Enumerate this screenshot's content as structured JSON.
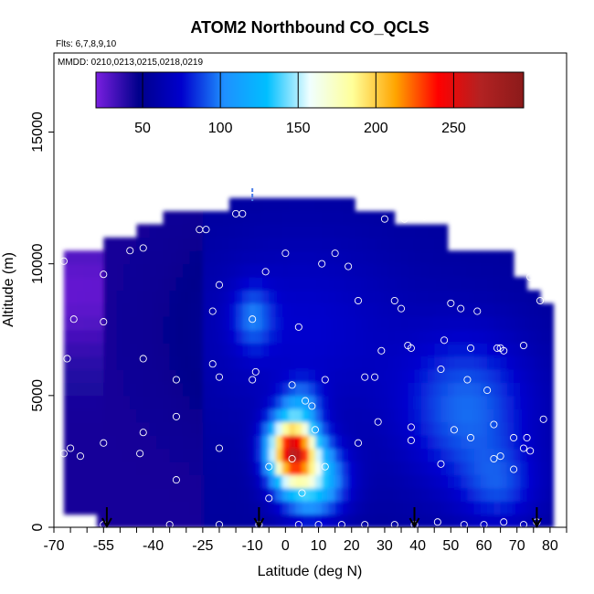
{
  "chart_data": {
    "type": "heatmap",
    "title": "ATOM2 Northbound CO_QCLS",
    "flights_note": "Flts: 6,7,8,9,10",
    "dates_note": "MMDD: 0210,0213,0215,0218,0219",
    "xlabel": "Latitude (deg N)",
    "ylabel": "Altitude (m)",
    "xlim": [
      -70,
      85
    ],
    "ylim": [
      0,
      18000
    ],
    "x_ticks": [
      -70,
      -55,
      -40,
      -25,
      -10,
      0,
      10,
      20,
      30,
      40,
      50,
      60,
      70,
      80
    ],
    "y_ticks": [
      0,
      5000,
      10000,
      15000
    ],
    "colorbar": {
      "range": [
        20,
        295
      ],
      "ticks": [
        50,
        100,
        150,
        200,
        250
      ],
      "colors": [
        "#7a1fe0",
        "#00008b",
        "#0000cd",
        "#1e90ff",
        "#00bfff",
        "#f0ffff",
        "#ffff99",
        "#ffa500",
        "#ff0000",
        "#b22222",
        "#8b1a1a"
      ],
      "placement": "top-inside"
    },
    "flight_markers_lat": [
      -54,
      -8,
      39,
      76
    ],
    "top_marker_lat": -10,
    "sample_points": [
      {
        "lat": -67,
        "alt": 10100
      },
      {
        "lat": -64,
        "alt": 7900
      },
      {
        "lat": -66,
        "alt": 6400
      },
      {
        "lat": -67,
        "alt": 2800
      },
      {
        "lat": -65,
        "alt": 3000
      },
      {
        "lat": -62,
        "alt": 2700
      },
      {
        "lat": -55,
        "alt": 9600
      },
      {
        "lat": -55,
        "alt": 7800
      },
      {
        "lat": -55,
        "alt": 3200
      },
      {
        "lat": -47,
        "alt": 10500
      },
      {
        "lat": -43,
        "alt": 10600
      },
      {
        "lat": -43,
        "alt": 6400
      },
      {
        "lat": -43,
        "alt": 3600
      },
      {
        "lat": -44,
        "alt": 2800
      },
      {
        "lat": -33,
        "alt": 5600
      },
      {
        "lat": -33,
        "alt": 4200
      },
      {
        "lat": -33,
        "alt": 1800
      },
      {
        "lat": -26,
        "alt": 11300
      },
      {
        "lat": -24,
        "alt": 11300
      },
      {
        "lat": -22,
        "alt": 6200
      },
      {
        "lat": -22,
        "alt": 8200
      },
      {
        "lat": -20,
        "alt": 9200
      },
      {
        "lat": -20,
        "alt": 3000
      },
      {
        "lat": -20,
        "alt": 5700
      },
      {
        "lat": -15,
        "alt": 11900
      },
      {
        "lat": -13,
        "alt": 11900
      },
      {
        "lat": -10,
        "alt": 5600
      },
      {
        "lat": -10,
        "alt": 7900
      },
      {
        "lat": -9,
        "alt": 5900
      },
      {
        "lat": -6,
        "alt": 9700
      },
      {
        "lat": 0,
        "alt": 10400
      },
      {
        "lat": 4,
        "alt": 7600
      },
      {
        "lat": 2,
        "alt": 5400
      },
      {
        "lat": 6,
        "alt": 4800
      },
      {
        "lat": 8,
        "alt": 4600
      },
      {
        "lat": 9,
        "alt": 3700
      },
      {
        "lat": 12,
        "alt": 5600
      },
      {
        "lat": 11,
        "alt": 10000
      },
      {
        "lat": 15,
        "alt": 10400
      },
      {
        "lat": 19,
        "alt": 9900
      },
      {
        "lat": 22,
        "alt": 8600
      },
      {
        "lat": 24,
        "alt": 5700
      },
      {
        "lat": 27,
        "alt": 5700
      },
      {
        "lat": 22,
        "alt": 3200
      },
      {
        "lat": 28,
        "alt": 4000
      },
      {
        "lat": 30,
        "alt": 11700
      },
      {
        "lat": 36,
        "alt": 11700
      },
      {
        "lat": 42,
        "alt": 11800
      },
      {
        "lat": 33,
        "alt": 8600
      },
      {
        "lat": 35,
        "alt": 8300
      },
      {
        "lat": 29,
        "alt": 6700
      },
      {
        "lat": 37,
        "alt": 6900
      },
      {
        "lat": 38,
        "alt": 6800
      },
      {
        "lat": 38,
        "alt": 3800
      },
      {
        "lat": 38,
        "alt": 3300
      },
      {
        "lat": 48,
        "alt": 7100
      },
      {
        "lat": 47,
        "alt": 2400
      },
      {
        "lat": 47,
        "alt": 6000
      },
      {
        "lat": 50,
        "alt": 8500
      },
      {
        "lat": 53,
        "alt": 8300
      },
      {
        "lat": 51,
        "alt": 3700
      },
      {
        "lat": 55,
        "alt": 5600
      },
      {
        "lat": 56,
        "alt": 6800
      },
      {
        "lat": 56,
        "alt": 3400
      },
      {
        "lat": 58,
        "alt": 8200
      },
      {
        "lat": 61,
        "alt": 5200
      },
      {
        "lat": 63,
        "alt": 3900
      },
      {
        "lat": 64,
        "alt": 6800
      },
      {
        "lat": 65,
        "alt": 6800
      },
      {
        "lat": 66,
        "alt": 6700
      },
      {
        "lat": 65,
        "alt": 2700
      },
      {
        "lat": 63,
        "alt": 2600
      },
      {
        "lat": 69,
        "alt": 3400
      },
      {
        "lat": 69,
        "alt": 2200
      },
      {
        "lat": 72,
        "alt": 3000
      },
      {
        "lat": 72,
        "alt": 6900
      },
      {
        "lat": 73,
        "alt": 3400
      },
      {
        "lat": 74,
        "alt": 9500
      },
      {
        "lat": 77,
        "alt": 8600
      },
      {
        "lat": 78,
        "alt": 4100
      },
      {
        "lat": 74,
        "alt": 2900
      },
      {
        "lat": 2,
        "alt": 2600
      },
      {
        "lat": -5,
        "alt": 2300
      },
      {
        "lat": 12,
        "alt": 2300
      },
      {
        "lat": -5,
        "alt": 1100
      },
      {
        "lat": 5,
        "alt": 1300
      },
      {
        "lat": -55,
        "alt": 100
      },
      {
        "lat": -35,
        "alt": 100
      },
      {
        "lat": -20,
        "alt": 100
      },
      {
        "lat": -8,
        "alt": 100
      },
      {
        "lat": 4,
        "alt": 100
      },
      {
        "lat": 10,
        "alt": 100
      },
      {
        "lat": 17,
        "alt": 100
      },
      {
        "lat": 24,
        "alt": 100
      },
      {
        "lat": 33,
        "alt": 100
      },
      {
        "lat": 39,
        "alt": 100
      },
      {
        "lat": 46,
        "alt": 200
      },
      {
        "lat": 54,
        "alt": 100
      },
      {
        "lat": 60,
        "alt": 100
      },
      {
        "lat": 66,
        "alt": 200
      },
      {
        "lat": 72,
        "alt": 100
      },
      {
        "lat": 76,
        "alt": 200
      }
    ]
  }
}
